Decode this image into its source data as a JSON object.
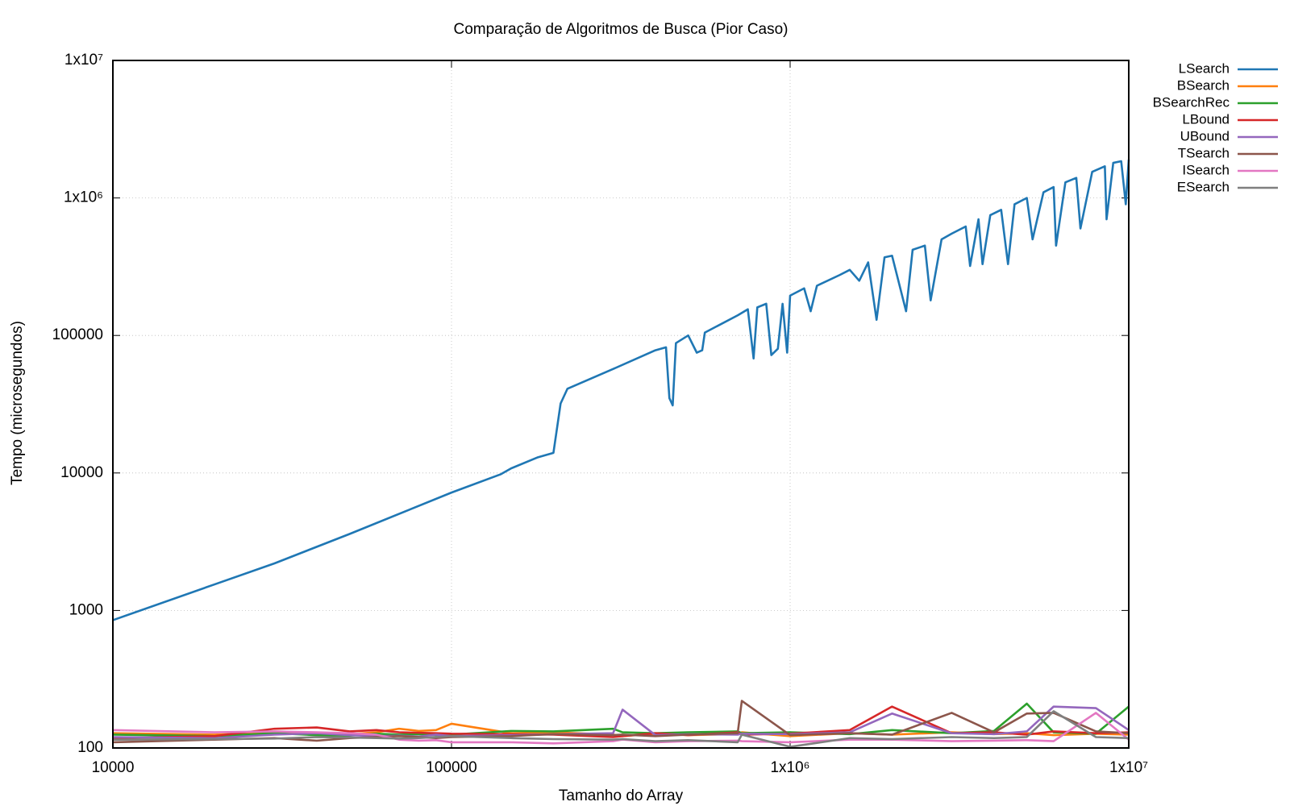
{
  "chart_data": {
    "type": "line",
    "title": "Comparação de Algoritmos de Busca (Pior Caso)",
    "x_label": "Tamanho do Array",
    "y_label": "Tempo (microsegundos)",
    "xscale": "log",
    "yscale": "log",
    "grid": true,
    "legend": "right",
    "xlim": [
      10000,
      10000000
    ],
    "xticks": [
      10000,
      100000,
      {
        "value": 1000000,
        "label": "1x10⁶"
      },
      {
        "value": 10000000,
        "label": "1x10⁷"
      }
    ],
    "ylim": [
      100,
      10000000
    ],
    "yticks": [
      100,
      1000,
      10000,
      100000,
      {
        "value": 1000000,
        "label": "1x10⁶"
      },
      {
        "value": 10000000,
        "label": "1x10⁷"
      }
    ],
    "series": [
      {
        "name": "LSearch",
        "color": "#1f77b4",
        "x": [
          10000,
          20000,
          30000,
          50000,
          100000,
          140000,
          150000,
          180000,
          200000,
          210000,
          220000,
          300000,
          400000,
          430000,
          440000,
          450000,
          460000,
          500000,
          530000,
          550000,
          560000,
          700000,
          750000,
          780000,
          800000,
          850000,
          880000,
          920000,
          950000,
          980000,
          1000000,
          1100000,
          1150000,
          1200000,
          1400000,
          1500000,
          1600000,
          1700000,
          1800000,
          1900000,
          2000000,
          2200000,
          2300000,
          2500000,
          2600000,
          2800000,
          3000000,
          3300000,
          3400000,
          3600000,
          3700000,
          3900000,
          4200000,
          4400000,
          4600000,
          5000000,
          5200000,
          5600000,
          6000000,
          6100000,
          6500000,
          7000000,
          7200000,
          7800000,
          8500000,
          8600000,
          9000000,
          9500000,
          9800000,
          10000000
        ],
        "values": [
          850,
          1550,
          2200,
          3600,
          7200,
          9800,
          10800,
          13000,
          14000,
          32000,
          41000,
          57000,
          78000,
          82000,
          35000,
          31000,
          88000,
          100000,
          75000,
          78000,
          105000,
          140000,
          155000,
          68000,
          160000,
          170000,
          72000,
          80000,
          170000,
          75000,
          195000,
          220000,
          150000,
          230000,
          275000,
          300000,
          250000,
          340000,
          130000,
          370000,
          380000,
          150000,
          420000,
          450000,
          180000,
          500000,
          550000,
          620000,
          320000,
          700000,
          330000,
          750000,
          820000,
          330000,
          900000,
          1000000,
          500000,
          1100000,
          1200000,
          450000,
          1300000,
          1400000,
          600000,
          1550000,
          1700000,
          700000,
          1800000,
          1850000,
          900000,
          1900000
        ]
      },
      {
        "name": "BSearch",
        "color": "#ff7f0e",
        "x": [
          10000,
          20000,
          30000,
          40000,
          50000,
          60000,
          70000,
          80000,
          90000,
          100000,
          150000,
          200000,
          300000,
          320000,
          400000,
          500000,
          700000,
          720000,
          1000000,
          1500000,
          2000000,
          3000000,
          4000000,
          5000000,
          6000000,
          8000000,
          10000000
        ],
        "values": [
          128,
          125,
          130,
          127,
          126,
          130,
          138,
          133,
          135,
          150,
          128,
          130,
          125,
          122,
          127,
          124,
          126,
          130,
          122,
          128,
          125,
          130,
          126,
          128,
          124,
          127,
          125
        ]
      },
      {
        "name": "BSearchRec",
        "color": "#2ca02c",
        "x": [
          10000,
          20000,
          30000,
          40000,
          50000,
          60000,
          70000,
          80000,
          90000,
          100000,
          150000,
          200000,
          300000,
          320000,
          400000,
          500000,
          700000,
          720000,
          1000000,
          1500000,
          2000000,
          3000000,
          4000000,
          5000000,
          6000000,
          8000000,
          10000000
        ],
        "values": [
          125,
          122,
          128,
          124,
          123,
          127,
          125,
          126,
          124,
          125,
          133,
          132,
          138,
          130,
          128,
          130,
          132,
          128,
          130,
          126,
          135,
          128,
          133,
          210,
          130,
          127,
          200
        ]
      },
      {
        "name": "LBound",
        "color": "#d62728",
        "x": [
          10000,
          20000,
          30000,
          40000,
          50000,
          60000,
          70000,
          80000,
          90000,
          100000,
          150000,
          200000,
          300000,
          320000,
          400000,
          500000,
          700000,
          720000,
          1000000,
          1500000,
          2000000,
          3000000,
          4000000,
          5000000,
          6000000,
          8000000,
          10000000
        ],
        "values": [
          118,
          122,
          138,
          141,
          132,
          135,
          130,
          129,
          128,
          127,
          126,
          125,
          120,
          122,
          128,
          124,
          130,
          125,
          127,
          135,
          200,
          128,
          130,
          125,
          132,
          128,
          130
        ]
      },
      {
        "name": "UBound",
        "color": "#9467bd",
        "x": [
          10000,
          20000,
          30000,
          40000,
          50000,
          60000,
          70000,
          80000,
          90000,
          100000,
          150000,
          200000,
          300000,
          320000,
          400000,
          500000,
          700000,
          720000,
          1000000,
          1500000,
          2000000,
          3000000,
          4000000,
          5000000,
          6000000,
          8000000,
          10000000
        ],
        "values": [
          120,
          118,
          125,
          128,
          124,
          122,
          123,
          121,
          125,
          122,
          124,
          126,
          128,
          190,
          124,
          126,
          125,
          127,
          126,
          130,
          178,
          128,
          126,
          132,
          200,
          195,
          135
        ]
      },
      {
        "name": "TSearch",
        "color": "#8c564b",
        "x": [
          10000,
          20000,
          30000,
          40000,
          50000,
          60000,
          70000,
          80000,
          90000,
          100000,
          150000,
          200000,
          300000,
          320000,
          400000,
          500000,
          700000,
          720000,
          1000000,
          1500000,
          2000000,
          3000000,
          4000000,
          5000000,
          6000000,
          8000000,
          10000000
        ],
        "values": [
          110,
          115,
          118,
          113,
          118,
          120,
          122,
          120,
          118,
          120,
          122,
          126,
          124,
          125,
          122,
          125,
          128,
          220,
          124,
          128,
          125,
          180,
          130,
          178,
          180,
          132,
          128
        ]
      },
      {
        "name": "ISearch",
        "color": "#e377c2",
        "x": [
          10000,
          20000,
          30000,
          40000,
          50000,
          60000,
          70000,
          80000,
          90000,
          100000,
          150000,
          200000,
          300000,
          320000,
          400000,
          500000,
          700000,
          720000,
          1000000,
          1500000,
          2000000,
          3000000,
          4000000,
          5000000,
          6000000,
          8000000,
          10000000
        ],
        "values": [
          135,
          130,
          132,
          130,
          128,
          125,
          115,
          113,
          114,
          110,
          110,
          108,
          112,
          115,
          110,
          112,
          113,
          112,
          110,
          115,
          115,
          112,
          113,
          114,
          112,
          180,
          115
        ]
      },
      {
        "name": "ESearch",
        "color": "#7f7f7f",
        "x": [
          10000,
          20000,
          30000,
          40000,
          50000,
          60000,
          70000,
          80000,
          90000,
          100000,
          150000,
          200000,
          300000,
          320000,
          400000,
          500000,
          700000,
          720000,
          1000000,
          1500000,
          2000000,
          3000000,
          4000000,
          5000000,
          6000000,
          8000000,
          10000000
        ],
        "values": [
          115,
          116,
          117,
          120,
          119,
          118,
          117,
          118,
          120,
          122,
          118,
          116,
          115,
          116,
          112,
          114,
          110,
          125,
          102,
          118,
          116,
          120,
          118,
          120,
          185,
          120,
          118
        ]
      }
    ]
  }
}
